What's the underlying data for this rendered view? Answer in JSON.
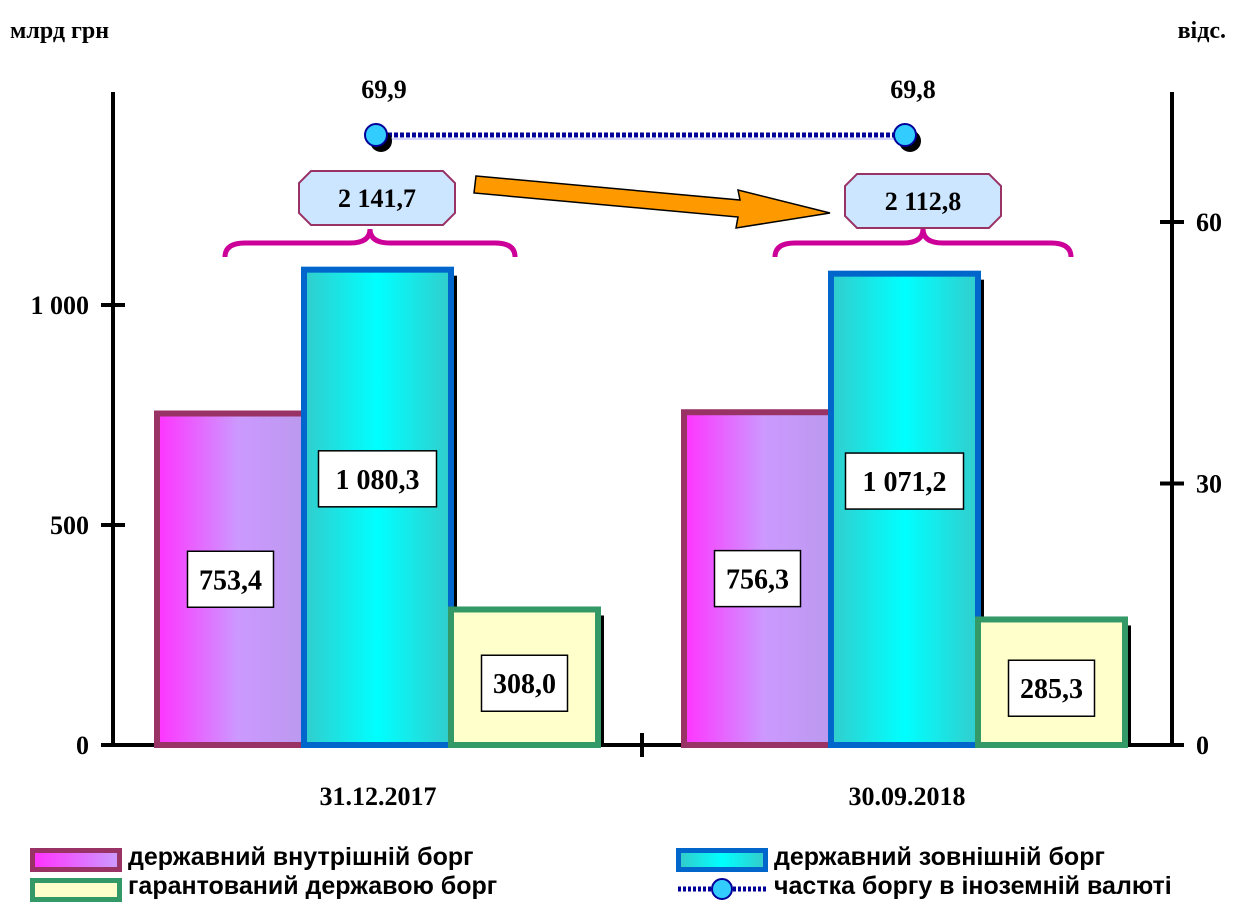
{
  "chart_data": {
    "type": "bar",
    "y_left_label": "млрд грн",
    "y_right_label": "відс.",
    "categories": [
      "31.12.2017",
      "30.09.2018"
    ],
    "y_left_ticks": [
      "0",
      "500",
      "1 000"
    ],
    "y_left_tick_values": [
      0,
      500,
      1000
    ],
    "y_right_ticks": [
      "0",
      "30",
      "60"
    ],
    "y_right_tick_values": [
      0,
      30,
      60
    ],
    "series": [
      {
        "name": "державний внутрішній борг",
        "values": [
          753.4,
          756.3
        ],
        "labels": [
          "753,4",
          "756,3"
        ],
        "color": "#cc99ff"
      },
      {
        "name": "державний зовнішній борг",
        "values": [
          1080.3,
          1071.2
        ],
        "labels": [
          "1 080,3",
          "1 071,2"
        ],
        "color": "#33cccc"
      },
      {
        "name": "гарантований державою борг",
        "values": [
          308.0,
          285.3
        ],
        "labels": [
          "308,0",
          "285,3"
        ],
        "color": "#ffffcc"
      }
    ],
    "line_series": {
      "name": "частка боргу в іноземній валюті",
      "values": [
        69.9,
        69.8
      ],
      "labels": [
        "69,9",
        "69,8"
      ],
      "axis": "right"
    },
    "totals": {
      "values": [
        2141.7,
        2112.8
      ],
      "labels": [
        "2 141,7",
        "2 112,8"
      ]
    },
    "legend": [
      "державний внутрішній борг",
      "гарантований державою борг",
      "державний зовнішній борг",
      "частка боргу в іноземній валюті"
    ],
    "legend_display": [
      "державний внутрішній борг",
      "гарантований державою борг",
      "державний зовнішній борг",
      "частка боргу в іноземній валюті"
    ],
    "colors": {
      "domestic_edge": "#993366",
      "external_edge": "#0066cc",
      "guaranteed_edge": "#339966",
      "brace": "#cc0099",
      "total_box_fill": "#cce6ff",
      "total_box_edge": "#993366",
      "arrow": "#ff9900",
      "line": "#000099",
      "marker": "#33ccff"
    }
  }
}
